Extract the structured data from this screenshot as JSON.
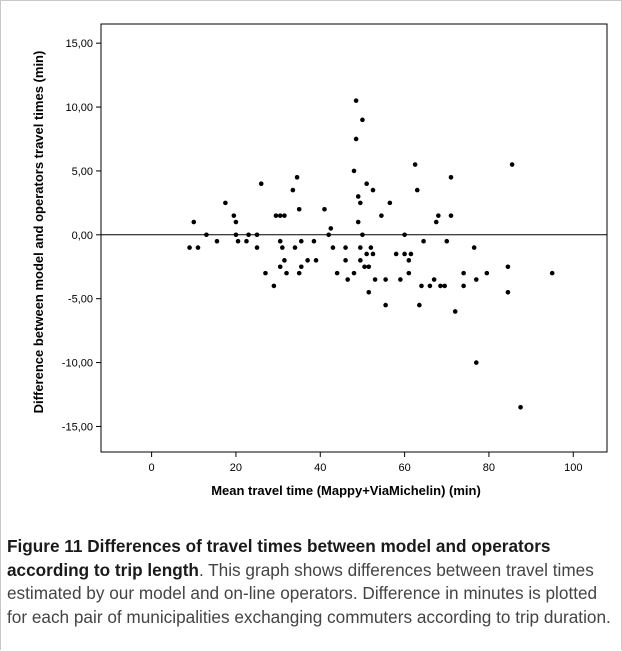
{
  "chart_data": {
    "type": "scatter",
    "xlabel": "Mean travel time (Mappy+ViaMichelin) (min)",
    "ylabel": "Difference between model and operators travel times (min)",
    "xlim": [
      -12,
      108
    ],
    "ylim": [
      -17,
      16.5
    ],
    "x_ticks": [
      0,
      20,
      40,
      60,
      80,
      100
    ],
    "y_ticks": [
      15,
      10,
      5,
      0,
      -5,
      -10,
      -15
    ],
    "y_tick_labels": [
      "15,00",
      "10,00",
      "5,00",
      "0,00",
      "-5,00",
      "-10,00",
      "-15,00"
    ],
    "reference_line": 0,
    "grid": false,
    "legend": "none",
    "points": [
      {
        "x": 9,
        "y": -1
      },
      {
        "x": 10,
        "y": 1
      },
      {
        "x": 11,
        "y": -1
      },
      {
        "x": 13,
        "y": 0
      },
      {
        "x": 15.5,
        "y": -0.5
      },
      {
        "x": 17.5,
        "y": 2.5
      },
      {
        "x": 19.5,
        "y": 1.5
      },
      {
        "x": 20,
        "y": 1
      },
      {
        "x": 20,
        "y": 0
      },
      {
        "x": 20.5,
        "y": -0.5
      },
      {
        "x": 22.5,
        "y": -0.5
      },
      {
        "x": 23,
        "y": 0
      },
      {
        "x": 25,
        "y": 0
      },
      {
        "x": 25,
        "y": -1
      },
      {
        "x": 26,
        "y": 4
      },
      {
        "x": 27,
        "y": -3
      },
      {
        "x": 29,
        "y": -4
      },
      {
        "x": 29.5,
        "y": 1.5
      },
      {
        "x": 30.5,
        "y": 1.5
      },
      {
        "x": 30.5,
        "y": -0.5
      },
      {
        "x": 30.5,
        "y": -2.5
      },
      {
        "x": 31,
        "y": -1
      },
      {
        "x": 31.5,
        "y": -2
      },
      {
        "x": 31.5,
        "y": 1.5
      },
      {
        "x": 32,
        "y": -3
      },
      {
        "x": 33.5,
        "y": 3.5
      },
      {
        "x": 34,
        "y": -1
      },
      {
        "x": 34.5,
        "y": 4.5
      },
      {
        "x": 35,
        "y": 2
      },
      {
        "x": 35,
        "y": -3
      },
      {
        "x": 35.5,
        "y": -0.5
      },
      {
        "x": 35.5,
        "y": -2.5
      },
      {
        "x": 37,
        "y": -2
      },
      {
        "x": 38.5,
        "y": -0.5
      },
      {
        "x": 39,
        "y": -2
      },
      {
        "x": 41,
        "y": 2
      },
      {
        "x": 42,
        "y": 0
      },
      {
        "x": 42.5,
        "y": 0.5
      },
      {
        "x": 43,
        "y": -1
      },
      {
        "x": 44,
        "y": -3
      },
      {
        "x": 46,
        "y": -1
      },
      {
        "x": 46,
        "y": -2
      },
      {
        "x": 46.5,
        "y": -3.5
      },
      {
        "x": 48,
        "y": 5
      },
      {
        "x": 48,
        "y": -3
      },
      {
        "x": 48.5,
        "y": 10.5
      },
      {
        "x": 48.5,
        "y": 7.5
      },
      {
        "x": 49,
        "y": 3
      },
      {
        "x": 49,
        "y": 1
      },
      {
        "x": 49.5,
        "y": 2.5
      },
      {
        "x": 49.5,
        "y": -1
      },
      {
        "x": 49.5,
        "y": -2
      },
      {
        "x": 50,
        "y": 9
      },
      {
        "x": 50,
        "y": 0
      },
      {
        "x": 50.5,
        "y": -2.5
      },
      {
        "x": 51,
        "y": 4
      },
      {
        "x": 51,
        "y": -1.5
      },
      {
        "x": 51.5,
        "y": -2.5
      },
      {
        "x": 51.5,
        "y": -4.5
      },
      {
        "x": 52,
        "y": -1
      },
      {
        "x": 52.5,
        "y": 3.5
      },
      {
        "x": 52.5,
        "y": -1.5
      },
      {
        "x": 53,
        "y": -3.5
      },
      {
        "x": 54.5,
        "y": 1.5
      },
      {
        "x": 55.5,
        "y": -3.5
      },
      {
        "x": 55.5,
        "y": -5.5
      },
      {
        "x": 56.5,
        "y": 2.5
      },
      {
        "x": 58,
        "y": -1.5
      },
      {
        "x": 59,
        "y": -3.5
      },
      {
        "x": 60,
        "y": -1.5
      },
      {
        "x": 60,
        "y": 0
      },
      {
        "x": 61,
        "y": -2
      },
      {
        "x": 61,
        "y": -3
      },
      {
        "x": 61.5,
        "y": -1.5
      },
      {
        "x": 62.5,
        "y": 5.5
      },
      {
        "x": 63,
        "y": 3.5
      },
      {
        "x": 63.5,
        "y": -5.5
      },
      {
        "x": 64,
        "y": -4
      },
      {
        "x": 64.5,
        "y": -0.5
      },
      {
        "x": 66,
        "y": -4
      },
      {
        "x": 67,
        "y": -3.5
      },
      {
        "x": 67.5,
        "y": 1
      },
      {
        "x": 68,
        "y": 1.5
      },
      {
        "x": 68.5,
        "y": -4
      },
      {
        "x": 69.5,
        "y": -4
      },
      {
        "x": 70,
        "y": -0.5
      },
      {
        "x": 71,
        "y": 4.5
      },
      {
        "x": 71,
        "y": 1.5
      },
      {
        "x": 72,
        "y": -6
      },
      {
        "x": 74,
        "y": -3
      },
      {
        "x": 74,
        "y": -4
      },
      {
        "x": 76.5,
        "y": -1
      },
      {
        "x": 77,
        "y": -10
      },
      {
        "x": 77,
        "y": -3.5
      },
      {
        "x": 79.5,
        "y": -3
      },
      {
        "x": 84.5,
        "y": -2.5
      },
      {
        "x": 84.5,
        "y": -4.5
      },
      {
        "x": 85.5,
        "y": 5.5
      },
      {
        "x": 87.5,
        "y": -13.5
      },
      {
        "x": 95,
        "y": -3
      }
    ]
  },
  "caption": {
    "label": "Figure 11",
    "title": "Differences of travel times between model and operators according to trip length",
    "text": ". This graph shows differences between travel times estimated by our model and on-line operators. Difference in minutes is plotted for each pair of municipalities exchanging commuters according to trip duration."
  },
  "colors": {
    "axis": "#000000",
    "points": "#000000",
    "caption_text": "#444444"
  }
}
